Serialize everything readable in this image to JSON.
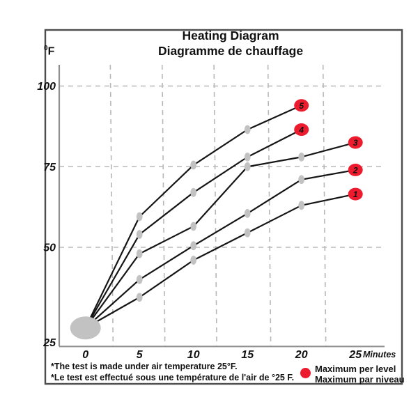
{
  "title": "Heating Diagram",
  "subtitle": "Diagramme de chauffage",
  "y_unit": {
    "sup": "0",
    "main": "F"
  },
  "x_axis_unit": "Minutes",
  "footnotes": {
    "line1": "*The test is made under air temperature 25°F.",
    "line2": "*Le test est effectué sous une température de l'air de °25 F."
  },
  "legend": {
    "line1": "Maximum per level",
    "line2": "Maximum par niveau"
  },
  "colors": {
    "max_marker_red": "#ED1B2E",
    "data_line": "#151515",
    "point_gray": "#C2C2C2",
    "grid_gray": "#B8B8B8",
    "axis_gray": "#8F8F8F",
    "border_gray": "#4D4D4D",
    "text": "#111111"
  },
  "chart_data": {
    "type": "line",
    "title": "Heating Diagram",
    "subtitle": "Diagramme de chauffage",
    "xlabel": "Minutes",
    "ylabel": "°F",
    "xlim": [
      0,
      27.7
    ],
    "ylim": [
      25,
      105
    ],
    "x_ticks": [
      0,
      5,
      10,
      15,
      20,
      25
    ],
    "y_ticks": [
      25,
      50,
      75,
      100
    ],
    "grid": "dashed",
    "x_gridlines_at": [
      2.3,
      7.1,
      11.9,
      16.9,
      22
    ],
    "start_point": {
      "x": 0,
      "y": 25,
      "note": "common start, large gray circle"
    },
    "series": [
      {
        "name": "Level 1",
        "max_label": "1",
        "x": [
          0,
          5,
          10,
          15,
          20,
          25
        ],
        "y": [
          25,
          34.5,
          46,
          54.5,
          63,
          66.5
        ]
      },
      {
        "name": "Level 2",
        "max_label": "2",
        "x": [
          0,
          5,
          10,
          15,
          20,
          25
        ],
        "y": [
          25,
          40,
          50.5,
          60.5,
          71,
          74
        ]
      },
      {
        "name": "Level 3",
        "max_label": "3",
        "x": [
          0,
          5,
          10,
          15,
          20,
          25
        ],
        "y": [
          25,
          48,
          56.5,
          75,
          78,
          82.5
        ]
      },
      {
        "name": "Level 4",
        "max_label": "4",
        "x": [
          0,
          5,
          10,
          15,
          20
        ],
        "y": [
          25,
          54,
          67,
          78,
          86.5
        ]
      },
      {
        "name": "Level 5",
        "max_label": "5",
        "x": [
          0,
          5,
          10,
          15,
          20
        ],
        "y": [
          25,
          59.5,
          75.5,
          86.5,
          94
        ]
      }
    ],
    "legend_position": "bottom-right",
    "legend_entries": [
      {
        "marker": "red-ellipse",
        "labels": [
          "Maximum per level",
          "Maximum par niveau"
        ]
      }
    ]
  }
}
